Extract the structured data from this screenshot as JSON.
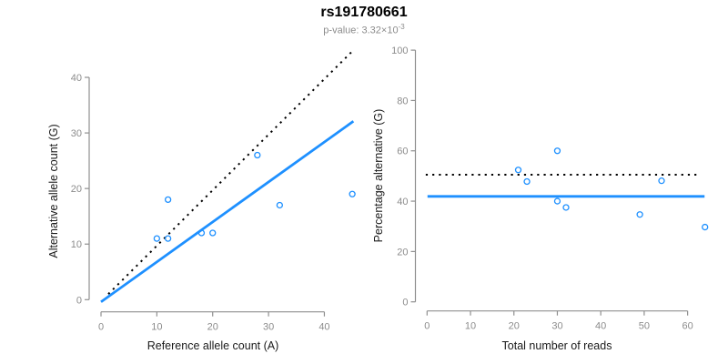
{
  "header": {
    "title": "rs191780661",
    "subtitle_prefix": "p-value: 3.32×10",
    "subtitle_exponent": "-3"
  },
  "colors": {
    "accent_blue": "#1E90FF",
    "dotted_line_black": "#000000",
    "axis_gray": "#8f8f8f",
    "tick_label_gray": "#8c8c8c",
    "axis_title_color": "#1a1a1a",
    "title_color": "#000000",
    "subtitle_gray": "#8c8c8c"
  },
  "chart_data": [
    {
      "type": "scatter",
      "name": "allele-count-scatter",
      "xlabel": "Reference allele count (A)",
      "ylabel": "Alternative allele count (G)",
      "xlim": [
        0,
        45
      ],
      "ylim": [
        0,
        45
      ],
      "xticks": [
        0,
        10,
        20,
        30,
        40
      ],
      "yticks": [
        0,
        10,
        20,
        30,
        40
      ],
      "grid": false,
      "legend": null,
      "points": [
        [
          10,
          11
        ],
        [
          12,
          11
        ],
        [
          12,
          18
        ],
        [
          18,
          12
        ],
        [
          20,
          12
        ],
        [
          28,
          26
        ],
        [
          32,
          17
        ],
        [
          45,
          19
        ]
      ],
      "lines": [
        {
          "name": "identity-line",
          "style": "dotted",
          "color": "#000000",
          "from": [
            1.3,
            1.0
          ],
          "to": [
            44.9,
            44.6
          ]
        },
        {
          "name": "fit-line",
          "style": "solid",
          "color": "#1E90FF",
          "from": [
            0,
            -0.4
          ],
          "to": [
            45.2,
            32.1
          ]
        }
      ]
    },
    {
      "type": "scatter",
      "name": "percentage-reads-scatter",
      "xlabel": "Total number of reads",
      "ylabel": "Percentage alternative (G)",
      "xlim": [
        0,
        64
      ],
      "ylim": [
        0,
        100
      ],
      "xticks": [
        0,
        10,
        20,
        30,
        40,
        50,
        60
      ],
      "yticks": [
        0,
        20,
        40,
        60,
        80,
        100
      ],
      "grid": false,
      "legend": null,
      "points": [
        [
          21,
          52.4
        ],
        [
          23,
          47.8
        ],
        [
          30,
          60
        ],
        [
          30,
          40
        ],
        [
          32,
          37.5
        ],
        [
          49,
          34.7
        ],
        [
          54,
          48.1
        ],
        [
          64,
          29.7
        ]
      ],
      "lines": [
        {
          "name": "expected-50-percent-line",
          "style": "dotted",
          "color": "#000000",
          "from": [
            -0.3,
            50.5
          ],
          "to": [
            62.8,
            50.5
          ]
        },
        {
          "name": "mean-percentage-line",
          "style": "solid",
          "color": "#1E90FF",
          "from": [
            0.1,
            41.9
          ],
          "to": [
            63.9,
            41.9
          ]
        }
      ]
    }
  ]
}
